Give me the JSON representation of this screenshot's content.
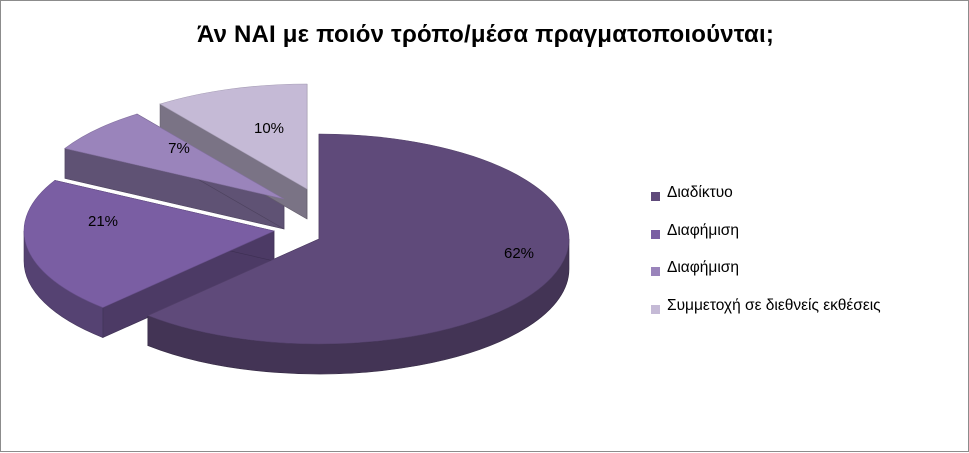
{
  "chart_data": {
    "type": "pie",
    "title": "Άν ΝΑΙ με ποιόν τρόπο/μέσα πραγματοποιούνται;",
    "legend_position": "right",
    "slices": [
      {
        "label": "Διαδίκτυο",
        "value": 62,
        "value_label": "62%",
        "color": "#5f4a7a"
      },
      {
        "label": "Διαφήμιση",
        "value": 21,
        "value_label": "21%",
        "color": "#7a5ea3"
      },
      {
        "label": "Διαφήμιση",
        "value": 7,
        "value_label": "7%",
        "color": "#9a84bb"
      },
      {
        "label": "Συμμετοχή σε διεθνείς εκθέσεις",
        "value": 10,
        "value_label": "10%",
        "color": "#c5bad6"
      }
    ]
  }
}
